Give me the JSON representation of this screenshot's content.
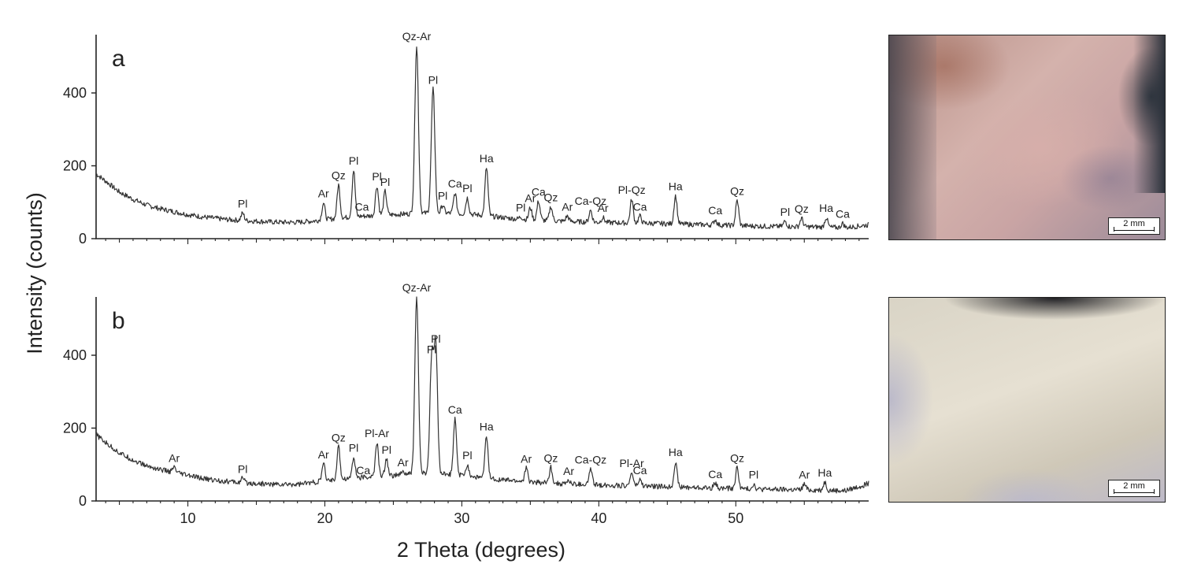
{
  "figure": {
    "ylabel": "Intensity (counts)",
    "xlabel": "2 Theta (degrees)",
    "scale_label": "2 mm"
  },
  "chart_data": [
    {
      "type": "line",
      "panel_label": "a",
      "xlim": [
        3.3,
        59.7
      ],
      "ylim": [
        0,
        560
      ],
      "xticks": [
        10,
        20,
        30,
        40,
        50
      ],
      "yticks": [
        0,
        200,
        400
      ],
      "baseline": [
        [
          3.3,
          178
        ],
        [
          4,
          158
        ],
        [
          5,
          128
        ],
        [
          6,
          108
        ],
        [
          7,
          92
        ],
        [
          8,
          82
        ],
        [
          9,
          74
        ],
        [
          10,
          66
        ],
        [
          11,
          60
        ],
        [
          12,
          56
        ],
        [
          13,
          52
        ],
        [
          14,
          50
        ],
        [
          15,
          48
        ],
        [
          16,
          46
        ],
        [
          17,
          45
        ],
        [
          18,
          45
        ],
        [
          19,
          48
        ],
        [
          20,
          52
        ],
        [
          21,
          56
        ],
        [
          22,
          60
        ],
        [
          23,
          62
        ],
        [
          24,
          64
        ],
        [
          25,
          66
        ],
        [
          26,
          68
        ],
        [
          27,
          70
        ],
        [
          28,
          70
        ],
        [
          29,
          70
        ],
        [
          30,
          68
        ],
        [
          31,
          66
        ],
        [
          32,
          62
        ],
        [
          33,
          58
        ],
        [
          34,
          54
        ],
        [
          35,
          52
        ],
        [
          36,
          50
        ],
        [
          38,
          47
        ],
        [
          40,
          45
        ],
        [
          42,
          43
        ],
        [
          44,
          42
        ],
        [
          46,
          40
        ],
        [
          48,
          38
        ],
        [
          50,
          36
        ],
        [
          52,
          34
        ],
        [
          54,
          33
        ],
        [
          56,
          32
        ],
        [
          58,
          30
        ],
        [
          59.7,
          38
        ]
      ],
      "peaks": [
        {
          "x": 14.0,
          "y": 70,
          "label": "Pl"
        },
        {
          "x": 19.9,
          "y": 98,
          "label": "Ar"
        },
        {
          "x": 21.0,
          "y": 148,
          "label": "Qz"
        },
        {
          "x": 22.1,
          "y": 188,
          "label": "Pl"
        },
        {
          "x": 22.7,
          "y": 62,
          "label": "Ca"
        },
        {
          "x": 23.8,
          "y": 145,
          "label": "Pl"
        },
        {
          "x": 24.4,
          "y": 130,
          "label": "Pl"
        },
        {
          "x": 26.7,
          "y": 530,
          "label": "Qz-Ar"
        },
        {
          "x": 27.9,
          "y": 410,
          "label": "Pl"
        },
        {
          "x": 28.6,
          "y": 92,
          "label": "Pl"
        },
        {
          "x": 29.5,
          "y": 125,
          "label": "Ca"
        },
        {
          "x": 30.4,
          "y": 112,
          "label": "Pl"
        },
        {
          "x": 31.8,
          "y": 195,
          "label": "Ha"
        },
        {
          "x": 34.3,
          "y": 60,
          "label": "Pl"
        },
        {
          "x": 35.0,
          "y": 85,
          "label": "Ar"
        },
        {
          "x": 35.6,
          "y": 103,
          "label": "Ca"
        },
        {
          "x": 36.5,
          "y": 88,
          "label": "Qz"
        },
        {
          "x": 37.7,
          "y": 62,
          "label": "Ar"
        },
        {
          "x": 39.4,
          "y": 78,
          "label": "Ca-Qz"
        },
        {
          "x": 40.3,
          "y": 58,
          "label": "Ar"
        },
        {
          "x": 42.4,
          "y": 108,
          "label": "Pl-Qz"
        },
        {
          "x": 43.0,
          "y": 62,
          "label": "Ca"
        },
        {
          "x": 45.6,
          "y": 118,
          "label": "Ha"
        },
        {
          "x": 48.5,
          "y": 52,
          "label": "Ca"
        },
        {
          "x": 50.1,
          "y": 105,
          "label": "Qz"
        },
        {
          "x": 53.6,
          "y": 48,
          "label": "Pl"
        },
        {
          "x": 54.8,
          "y": 56,
          "label": "Qz"
        },
        {
          "x": 56.6,
          "y": 58,
          "label": "Ha"
        },
        {
          "x": 57.8,
          "y": 42,
          "label": "Ca"
        }
      ]
    },
    {
      "type": "line",
      "panel_label": "b",
      "xlim": [
        3.3,
        59.7
      ],
      "ylim": [
        0,
        560
      ],
      "xticks": [
        10,
        20,
        30,
        40,
        50
      ],
      "yticks": [
        0,
        200,
        400
      ],
      "baseline": [
        [
          3.3,
          182
        ],
        [
          4,
          160
        ],
        [
          5,
          132
        ],
        [
          6,
          112
        ],
        [
          7,
          96
        ],
        [
          8,
          86
        ],
        [
          9,
          78
        ],
        [
          10,
          70
        ],
        [
          11,
          62
        ],
        [
          12,
          57
        ],
        [
          13,
          53
        ],
        [
          14,
          50
        ],
        [
          15,
          48
        ],
        [
          16,
          46
        ],
        [
          17,
          45
        ],
        [
          18,
          46
        ],
        [
          19,
          50
        ],
        [
          20,
          55
        ],
        [
          21,
          60
        ],
        [
          22,
          63
        ],
        [
          23,
          65
        ],
        [
          24,
          68
        ],
        [
          25,
          70
        ],
        [
          26,
          73
        ],
        [
          27,
          75
        ],
        [
          28,
          75
        ],
        [
          29,
          73
        ],
        [
          30,
          70
        ],
        [
          31,
          66
        ],
        [
          32,
          62
        ],
        [
          33,
          58
        ],
        [
          34,
          55
        ],
        [
          35,
          52
        ],
        [
          36,
          50
        ],
        [
          38,
          46
        ],
        [
          40,
          44
        ],
        [
          42,
          42
        ],
        [
          44,
          40
        ],
        [
          46,
          38
        ],
        [
          48,
          36
        ],
        [
          50,
          34
        ],
        [
          52,
          32
        ],
        [
          54,
          31
        ],
        [
          56,
          30
        ],
        [
          58,
          28
        ],
        [
          59.7,
          48
        ]
      ],
      "peaks": [
        {
          "x": 9.0,
          "y": 92,
          "label": "Ar"
        },
        {
          "x": 14.0,
          "y": 62,
          "label": "Pl"
        },
        {
          "x": 19.9,
          "y": 102,
          "label": "Ar"
        },
        {
          "x": 21.0,
          "y": 148,
          "label": "Qz"
        },
        {
          "x": 22.1,
          "y": 120,
          "label": "Pl"
        },
        {
          "x": 22.8,
          "y": 58,
          "label": "Ca"
        },
        {
          "x": 23.8,
          "y": 160,
          "label": "Pl-Ar"
        },
        {
          "x": 24.5,
          "y": 115,
          "label": "Pl"
        },
        {
          "x": 25.7,
          "y": 80,
          "label": "Ar"
        },
        {
          "x": 26.7,
          "y": 560,
          "label": "Qz-Ar"
        },
        {
          "x": 27.8,
          "y": 390,
          "label": "Pl"
        },
        {
          "x": 28.1,
          "y": 420,
          "label": "Pl"
        },
        {
          "x": 29.5,
          "y": 225,
          "label": "Ca"
        },
        {
          "x": 30.4,
          "y": 100,
          "label": "Pl"
        },
        {
          "x": 31.8,
          "y": 178,
          "label": "Ha"
        },
        {
          "x": 34.7,
          "y": 90,
          "label": "Ar"
        },
        {
          "x": 36.5,
          "y": 92,
          "label": "Qz"
        },
        {
          "x": 37.8,
          "y": 56,
          "label": "Ar"
        },
        {
          "x": 39.4,
          "y": 88,
          "label": "Ca-Qz"
        },
        {
          "x": 42.4,
          "y": 78,
          "label": "Pl-Ar"
        },
        {
          "x": 43.0,
          "y": 58,
          "label": "Ca"
        },
        {
          "x": 45.6,
          "y": 108,
          "label": "Ha"
        },
        {
          "x": 48.5,
          "y": 48,
          "label": "Ca"
        },
        {
          "x": 50.1,
          "y": 92,
          "label": "Qz"
        },
        {
          "x": 51.3,
          "y": 46,
          "label": "Pl"
        },
        {
          "x": 55.0,
          "y": 46,
          "label": "Ar"
        },
        {
          "x": 56.5,
          "y": 52,
          "label": "Ha"
        }
      ]
    }
  ]
}
